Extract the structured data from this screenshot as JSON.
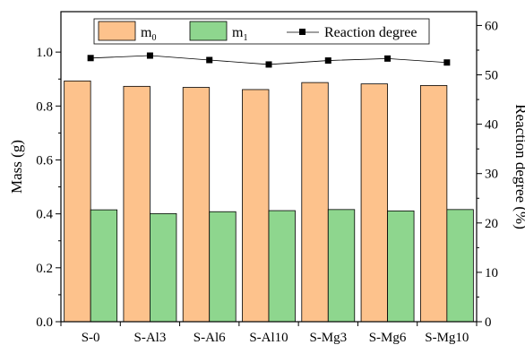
{
  "chart_data": {
    "type": "bar",
    "categories": [
      "S-0",
      "S-Al3",
      "S-Al6",
      "S-Al10",
      "S-Mg3",
      "S-Mg6",
      "S-Mg10"
    ],
    "series": [
      {
        "name": "m0",
        "legend_label": "m",
        "legend_sub": "0",
        "axis": "left",
        "kind": "bar",
        "color": "#FDC28C",
        "values": [
          0.893,
          0.873,
          0.869,
          0.861,
          0.887,
          0.882,
          0.876
        ]
      },
      {
        "name": "m1",
        "legend_label": "m",
        "legend_sub": "1",
        "axis": "left",
        "kind": "bar",
        "color": "#8ED68E",
        "values": [
          0.415,
          0.401,
          0.408,
          0.412,
          0.416,
          0.411,
          0.416
        ]
      },
      {
        "name": "Reaction degree",
        "legend_label": "Reaction degree",
        "axis": "right",
        "kind": "line",
        "color": "#000000",
        "values": [
          53.4,
          53.9,
          53.0,
          52.1,
          52.9,
          53.3,
          52.5
        ]
      }
    ],
    "ylabel": "Mass (g)",
    "y2label": "Reaction degree (%)",
    "xlabel": "",
    "ylim": [
      0,
      1.15
    ],
    "y2lim": [
      0,
      62.8
    ],
    "yticks": [
      "0.0",
      "0.2",
      "0.4",
      "0.6",
      "0.8",
      "1.0"
    ],
    "yticks_values": [
      0,
      0.2,
      0.4,
      0.6,
      0.8,
      1.0
    ],
    "y2ticks": [
      "0",
      "10",
      "20",
      "30",
      "40",
      "50",
      "60"
    ],
    "y2ticks_values": [
      0,
      10,
      20,
      30,
      40,
      50,
      60
    ],
    "grid": false,
    "legend_position": "top"
  }
}
